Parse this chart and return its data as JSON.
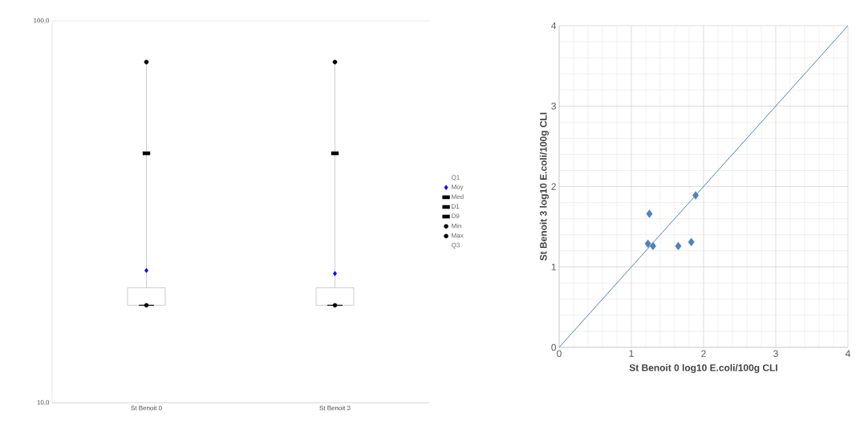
{
  "chart_data": [
    {
      "type": "box",
      "categories": [
        "St Benoit 0",
        "St Benoit 3"
      ],
      "log": "y",
      "ylim": [
        10,
        100
      ],
      "yticks": [
        {
          "value": 10,
          "label": "10,0"
        },
        {
          "value": 100,
          "label": "100,0"
        }
      ],
      "grid": "y",
      "legend": "right",
      "boxes": [
        {
          "low": 18,
          "q1": 18,
          "median": 18,
          "q3": 20,
          "high": 78
        },
        {
          "low": 18,
          "q1": 18,
          "median": 18,
          "q3": 20,
          "high": 78
        }
      ],
      "series": [
        {
          "name": "Q1",
          "type": "scatter",
          "marker": "none",
          "color": "#808080",
          "values": [
            null,
            null
          ]
        },
        {
          "name": "Moy",
          "type": "scatter",
          "marker": "diamond",
          "color": "#0000ff",
          "values": [
            22.2,
            21.8
          ]
        },
        {
          "name": "Med",
          "type": "scatter",
          "marker": "square",
          "color": "#000000",
          "values": [
            null,
            null
          ]
        },
        {
          "name": "D1",
          "type": "scatter",
          "marker": "square",
          "color": "#000000",
          "values": [
            null,
            null
          ]
        },
        {
          "name": "D9",
          "type": "scatter",
          "marker": "square",
          "color": "#000000",
          "values": [
            45,
            45
          ]
        },
        {
          "name": "Min",
          "type": "scatter",
          "marker": "circle",
          "color": "#000000",
          "values": [
            18,
            18
          ]
        },
        {
          "name": "Max",
          "type": "scatter",
          "marker": "circle",
          "color": "#000000",
          "values": [
            78,
            78
          ]
        },
        {
          "name": "Q3",
          "type": "scatter",
          "marker": "none",
          "color": "#808080",
          "values": [
            null,
            null
          ]
        }
      ]
    },
    {
      "type": "scatter",
      "xlabel": "St Benoit 0 log10 E.coli/100g CLI",
      "ylabel": "St Benoit 3 log10 E.coli/100g CLI",
      "xlim": [
        0,
        4
      ],
      "ylim": [
        0,
        4
      ],
      "xticks": [
        0,
        1,
        2,
        3,
        4
      ],
      "yticks": [
        0,
        1,
        2,
        3,
        4
      ],
      "grid": true,
      "series": [
        {
          "type": "scatter",
          "marker": "diamond",
          "color": "#4f81bd",
          "x": [
            1.25,
            1.89,
            1.23,
            1.3,
            1.65,
            1.83
          ],
          "values": [
            1.66,
            1.89,
            1.29,
            1.26,
            1.26,
            1.31
          ]
        },
        {
          "type": "line",
          "marker": "none",
          "color": "#4f81bd",
          "x": [
            0,
            4
          ],
          "values": [
            0,
            4
          ]
        }
      ]
    }
  ]
}
